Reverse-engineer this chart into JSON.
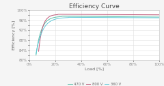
{
  "title": "Efficiency Curve",
  "xlabel": "Load [%]",
  "ylabel": "Efficiency [%]",
  "ylim": [
    80,
    100
  ],
  "xlim": [
    0,
    100
  ],
  "yticks": [
    80,
    82,
    84,
    86,
    88,
    90,
    92,
    94,
    96,
    98,
    100
  ],
  "ytick_labels": [
    "80%",
    "",
    "84%",
    "",
    "88%",
    "",
    "92%",
    "",
    "96%",
    "",
    "100%"
  ],
  "xticks": [
    0,
    20,
    40,
    60,
    80,
    100
  ],
  "xtick_labels": [
    "0%",
    "20%",
    "40%",
    "60%",
    "80%",
    "100%"
  ],
  "series": [
    {
      "label": "470 V",
      "color": "#5abfa8",
      "start_x": 5,
      "start_y": 82.0,
      "peak_x": 25,
      "peak_y": 97.6,
      "end_y": 97.3
    },
    {
      "label": "800 V",
      "color": "#c05878",
      "start_x": 7,
      "start_y": 83.5,
      "peak_x": 22,
      "peak_y": 98.4,
      "end_y": 98.2
    },
    {
      "label": "360 V",
      "color": "#60c8d8",
      "start_x": 5,
      "start_y": 82.5,
      "peak_x": 30,
      "peak_y": 97.2,
      "end_y": 97.0
    }
  ],
  "background_color": "#f5f5f5",
  "plot_bg_color": "#ffffff",
  "grid_color": "#e0e0e0",
  "title_fontsize": 6.5,
  "label_fontsize": 4.5,
  "tick_fontsize": 4,
  "legend_fontsize": 3.8
}
